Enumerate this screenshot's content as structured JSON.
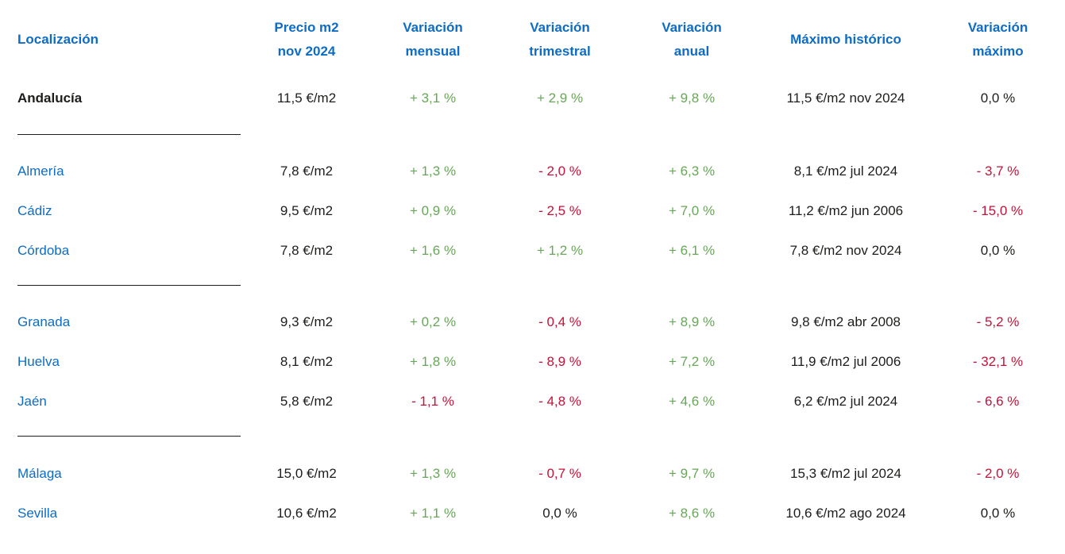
{
  "colors": {
    "blue": "#0e6cc4",
    "green": "#69a55a",
    "red": "#c31338",
    "ink": "#1d1d1b",
    "bg": "#ffffff"
  },
  "table": {
    "columns": {
      "location": {
        "line1": "Localización"
      },
      "price": {
        "line1": "Precio m2",
        "line2": "nov 2024"
      },
      "monthly": {
        "line1": "Variación",
        "line2": "mensual"
      },
      "quarterly": {
        "line1": "Variación",
        "line2": "trimestral"
      },
      "annual": {
        "line1": "Variación",
        "line2": "anual"
      },
      "max": {
        "line1": "Máximo histórico"
      },
      "var_max": {
        "line1": "Variación",
        "line2": "máximo"
      }
    },
    "rows": [
      {
        "location": "Andalucía",
        "price": "11,5 €/m2",
        "monthly": {
          "text": "+ 3,1 %",
          "tone": "pos"
        },
        "quarterly": {
          "text": "+ 2,9 %",
          "tone": "pos"
        },
        "annual": {
          "text": "+ 9,8 %",
          "tone": "pos"
        },
        "max": "11,5 €/m2 nov 2024",
        "var_max": {
          "text": "0,0 %",
          "tone": "zero"
        }
      },
      {
        "location": "Almería",
        "price": "7,8 €/m2",
        "monthly": {
          "text": "+ 1,3 %",
          "tone": "pos"
        },
        "quarterly": {
          "text": "- 2,0 %",
          "tone": "neg"
        },
        "annual": {
          "text": "+ 6,3 %",
          "tone": "pos"
        },
        "max": "8,1 €/m2 jul 2024",
        "var_max": {
          "text": "- 3,7 %",
          "tone": "neg"
        }
      },
      {
        "location": "Cádiz",
        "price": "9,5 €/m2",
        "monthly": {
          "text": "+ 0,9 %",
          "tone": "pos"
        },
        "quarterly": {
          "text": "- 2,5 %",
          "tone": "neg"
        },
        "annual": {
          "text": "+ 7,0 %",
          "tone": "pos"
        },
        "max": "11,2 €/m2 jun 2006",
        "var_max": {
          "text": "- 15,0 %",
          "tone": "neg"
        }
      },
      {
        "location": "Córdoba",
        "price": "7,8 €/m2",
        "monthly": {
          "text": "+ 1,6 %",
          "tone": "pos"
        },
        "quarterly": {
          "text": "+ 1,2 %",
          "tone": "pos"
        },
        "annual": {
          "text": "+ 6,1 %",
          "tone": "pos"
        },
        "max": "7,8 €/m2 nov 2024",
        "var_max": {
          "text": "0,0 %",
          "tone": "zero"
        }
      },
      {
        "location": "Granada",
        "price": "9,3 €/m2",
        "monthly": {
          "text": "+ 0,2 %",
          "tone": "pos"
        },
        "quarterly": {
          "text": "- 0,4 %",
          "tone": "neg"
        },
        "annual": {
          "text": "+ 8,9 %",
          "tone": "pos"
        },
        "max": "9,8 €/m2 abr 2008",
        "var_max": {
          "text": "- 5,2 %",
          "tone": "neg"
        }
      },
      {
        "location": "Huelva",
        "price": "8,1 €/m2",
        "monthly": {
          "text": "+ 1,8 %",
          "tone": "pos"
        },
        "quarterly": {
          "text": "- 8,9 %",
          "tone": "neg"
        },
        "annual": {
          "text": "+ 7,2 %",
          "tone": "pos"
        },
        "max": "11,9 €/m2 jul 2006",
        "var_max": {
          "text": "- 32,1 %",
          "tone": "neg"
        }
      },
      {
        "location": "Jaén",
        "price": "5,8 €/m2",
        "monthly": {
          "text": "- 1,1 %",
          "tone": "neg"
        },
        "quarterly": {
          "text": "- 4,8 %",
          "tone": "neg"
        },
        "annual": {
          "text": "+ 4,6 %",
          "tone": "pos"
        },
        "max": "6,2 €/m2 jul 2024",
        "var_max": {
          "text": "- 6,6 %",
          "tone": "neg"
        }
      },
      {
        "location": "Málaga",
        "price": "15,0 €/m2",
        "monthly": {
          "text": "+ 1,3 %",
          "tone": "pos"
        },
        "quarterly": {
          "text": "- 0,7 %",
          "tone": "neg"
        },
        "annual": {
          "text": "+ 9,7 %",
          "tone": "pos"
        },
        "max": "15,3 €/m2 jul 2024",
        "var_max": {
          "text": "- 2,0 %",
          "tone": "neg"
        }
      },
      {
        "location": "Sevilla",
        "price": "10,6 €/m2",
        "monthly": {
          "text": "+ 1,1 %",
          "tone": "pos"
        },
        "quarterly": {
          "text": "0,0 %",
          "tone": "zero"
        },
        "annual": {
          "text": "+ 8,6 %",
          "tone": "pos"
        },
        "max": "10,6 €/m2 ago 2024",
        "var_max": {
          "text": "0,0 %",
          "tone": "zero"
        }
      }
    ]
  }
}
